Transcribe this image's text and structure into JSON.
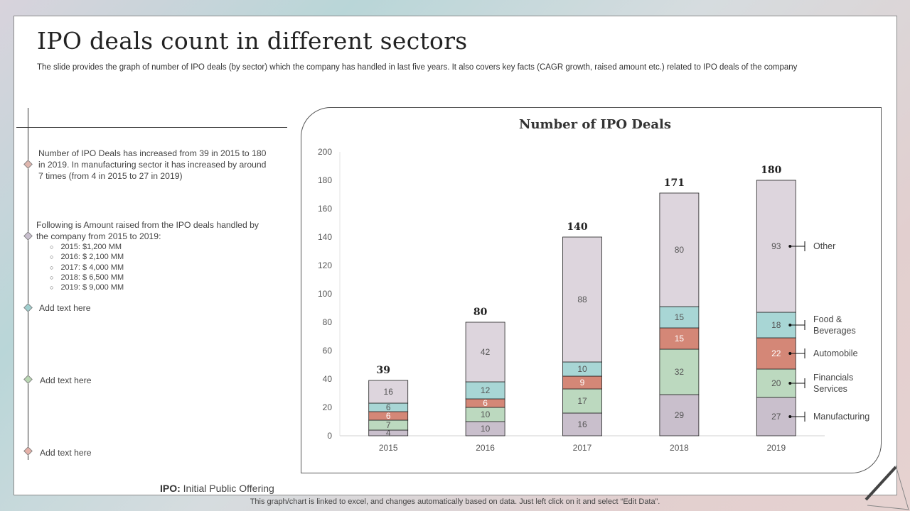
{
  "slide": {
    "title": "IPO deals count in different sectors",
    "subtitle": "The slide provides the graph of number of IPO deals (by sector) which the company has handled in last five years. It also covers key facts (CAGR growth, raised amount etc.) related to IPO deals of the company"
  },
  "timeline": {
    "item1": "Number of IPO Deals has increased from 39 in 2015 to 180 in 2019. In manufacturing  sector it has increased by around 7 times (from 4 in 2015 to 27 in 2019)",
    "item2": "Following is Amount raised from the IPO deals handled by the company from 2015 to 2019:",
    "amounts": [
      "2015: $1,200 MM",
      "2016: $ 2,100 MM",
      "2017: $ 4,000 MM",
      "2018: $ 6,500 MM",
      "2019: $ 9,000 MM"
    ],
    "item3": "Add text here",
    "item4": "Add text here",
    "item5": "Add text here",
    "diamond_colors": [
      "#e0b6ae",
      "#c9c0cf",
      "#9fcfcf",
      "#b9d6b2",
      "#e6b1a8"
    ]
  },
  "chart_data": {
    "type": "bar",
    "stacked": true,
    "title": "Number of IPO Deals",
    "categories": [
      "2015",
      "2016",
      "2017",
      "2018",
      "2019"
    ],
    "ylim": [
      0,
      200
    ],
    "yticks": [
      0,
      20,
      40,
      60,
      80,
      100,
      120,
      140,
      160,
      180,
      200
    ],
    "totals": [
      39,
      80,
      140,
      171,
      180
    ],
    "series": [
      {
        "name": "Manufacturing",
        "color": "#c9bfcc",
        "values": [
          4,
          10,
          16,
          29,
          27
        ]
      },
      {
        "name": "Financials Services",
        "color": "#bcd9bf",
        "values": [
          7,
          10,
          17,
          32,
          20
        ]
      },
      {
        "name": "Automobile",
        "color": "#d48777",
        "values": [
          6,
          6,
          9,
          15,
          22
        ]
      },
      {
        "name": "Food & Beverages",
        "color": "#a8d6d5",
        "values": [
          6,
          12,
          10,
          15,
          18
        ]
      },
      {
        "name": "Other",
        "color": "#ddd5dd",
        "values": [
          16,
          42,
          88,
          80,
          93
        ]
      }
    ],
    "legend_labels": [
      [
        "Manufacturing"
      ],
      [
        "Financials",
        "Services"
      ],
      [
        "Automobile"
      ],
      [
        "Food &",
        "Beverages"
      ],
      [
        "Other"
      ]
    ]
  },
  "notes": {
    "ipo_abbr": "IPO:",
    "ipo_full": " Initial Public Offering",
    "footer": "This graph/chart is linked to excel,  and changes automatically based on data. Just left click on it and select “Edit Data”."
  }
}
